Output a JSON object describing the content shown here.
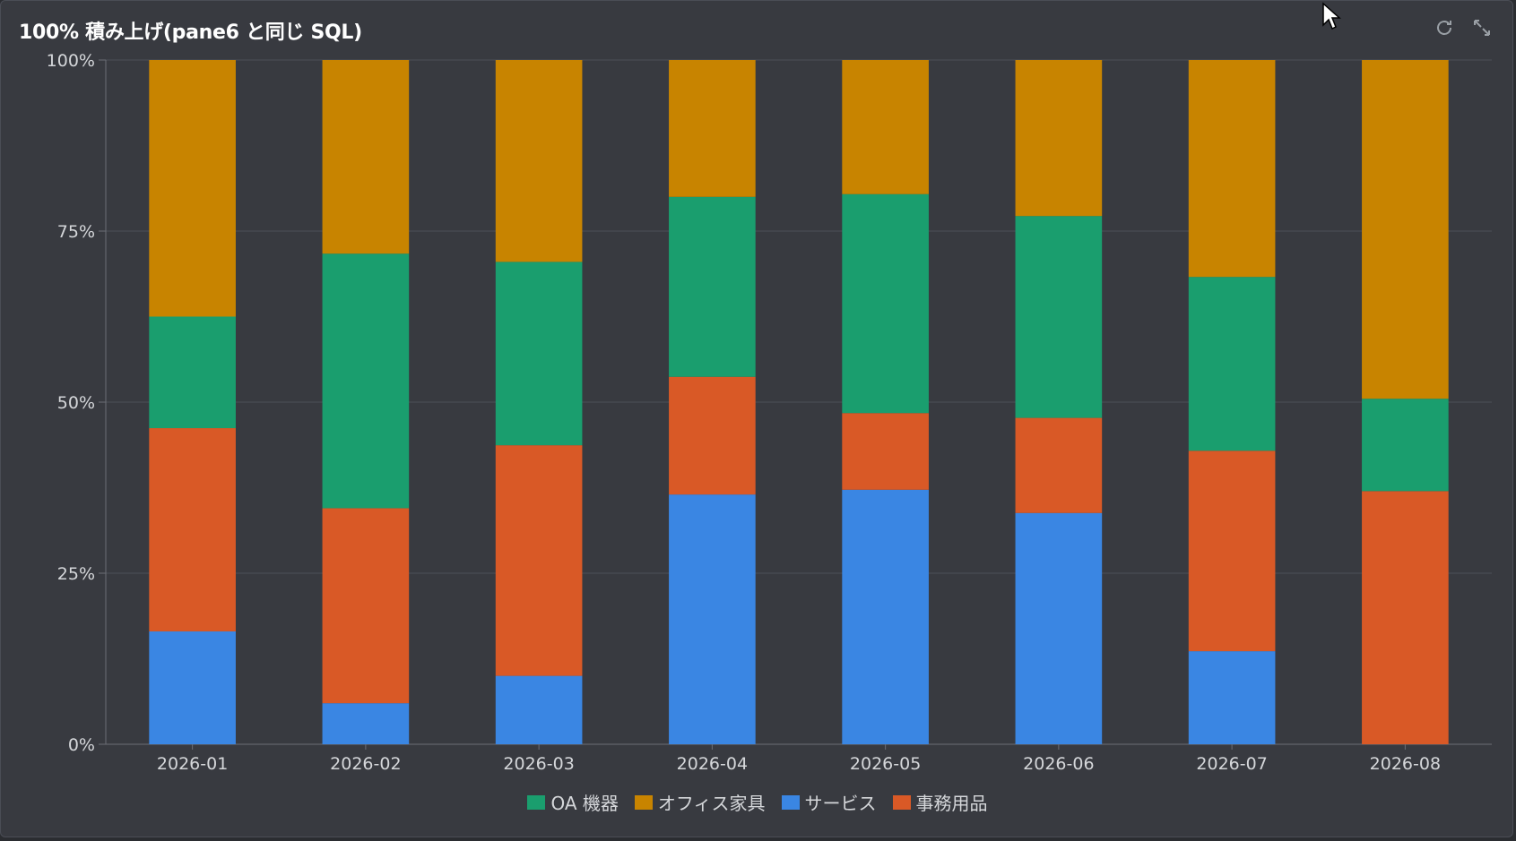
{
  "panel": {
    "title": "100% 積み上げ(pane6 と同じ SQL)"
  },
  "icons": {
    "refresh": "refresh-icon",
    "expand": "expand-icon"
  },
  "chart_data": {
    "type": "bar",
    "stacked": "percent",
    "categories": [
      "2026-01",
      "2026-02",
      "2026-03",
      "2026-04",
      "2026-05",
      "2026-06",
      "2026-07",
      "2026-08"
    ],
    "ylim": [
      0,
      100
    ],
    "yticks": [
      "0%",
      "25%",
      "50%",
      "75%",
      "100%"
    ],
    "grid": true,
    "legend_position": "bottom-center",
    "series": [
      {
        "name": "サービス",
        "color": "#3a86e3",
        "values": [
          16.5,
          6,
          10,
          36.5,
          37.2,
          33.8,
          13.6,
          0
        ]
      },
      {
        "name": "事務用品",
        "color": "#d95926",
        "values": [
          29.7,
          28.5,
          33.7,
          17.2,
          11.2,
          13.9,
          29.3,
          37
        ]
      },
      {
        "name": "OA 機器",
        "color": "#1a9e6e",
        "values": [
          16.3,
          37.2,
          26.8,
          26.3,
          32,
          29.5,
          25.4,
          13.5
        ]
      },
      {
        "name": "オフィス家具",
        "color": "#c88400",
        "values": [
          37.5,
          28.3,
          29.5,
          20,
          19.6,
          22.8,
          31.7,
          49.5
        ]
      }
    ],
    "legend_order": [
      "OA 機器",
      "オフィス家具",
      "サービス",
      "事務用品"
    ]
  }
}
